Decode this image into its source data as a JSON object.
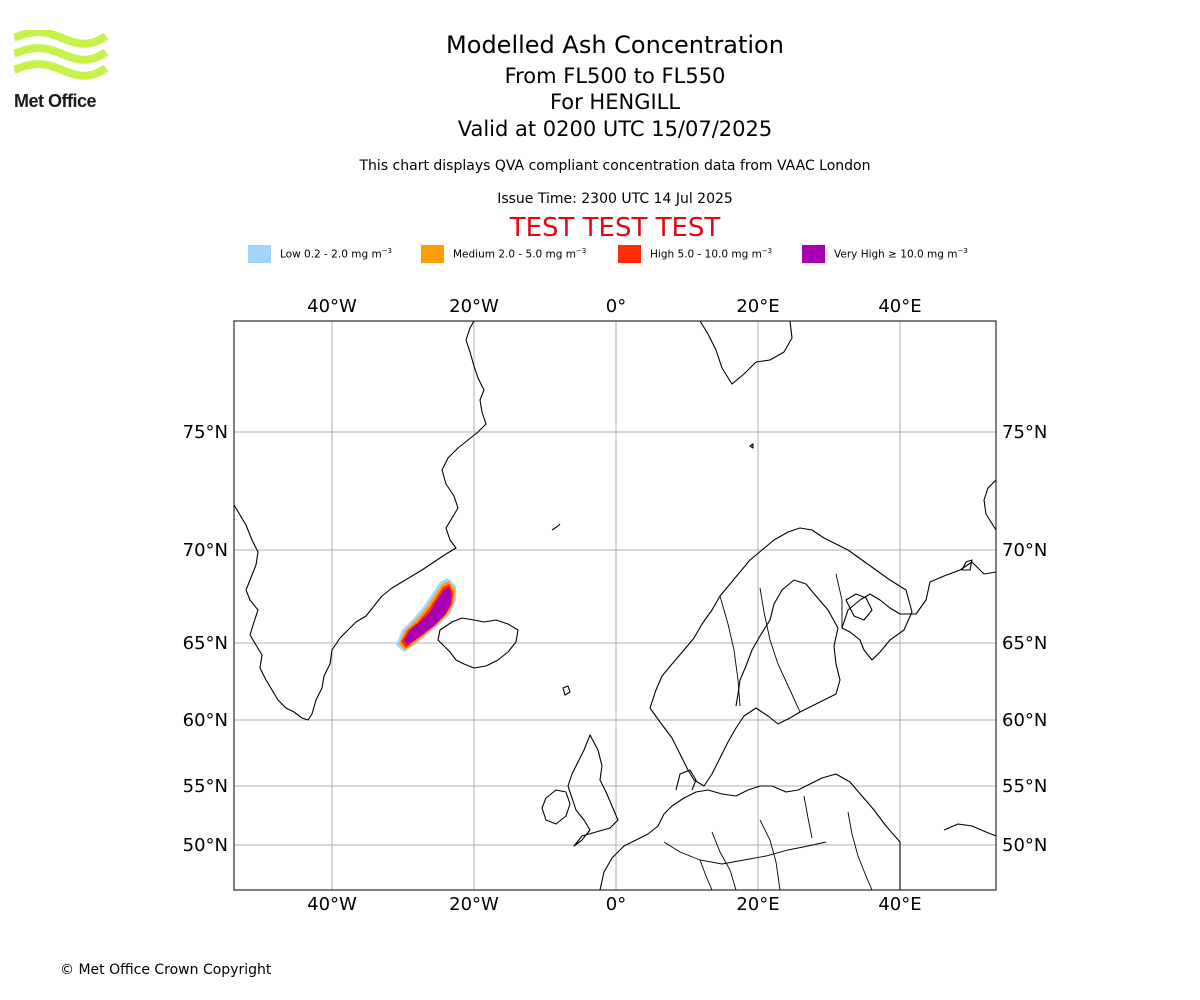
{
  "logo": {
    "text": "Met Office",
    "color": "#c8f24a"
  },
  "title": "Modelled Ash Concentration",
  "flight_levels": "From FL500 to FL550",
  "location": "For HENGILL",
  "valid_time": "Valid at 0200 UTC 15/07/2025",
  "description": "This chart displays QVA compliant concentration data from VAAC London",
  "issue_time": "Issue Time: 2300 UTC 14 Jul 2025",
  "test_banner": {
    "text": "TEST TEST TEST",
    "color": "#e30613"
  },
  "legend": [
    {
      "label": "Low 0.2 - 2.0 mg m",
      "unit_exp": "−3",
      "color": "#a3d4fc"
    },
    {
      "label": "Medium 2.0 - 5.0 mg m",
      "unit_exp": "−3",
      "color": "#ff9b07"
    },
    {
      "label": "High 5.0 - 10.0 mg m",
      "unit_exp": "−3",
      "color": "#ff2d05"
    },
    {
      "label": "Very High ≥ 10.0 mg m",
      "unit_exp": "−3",
      "color": "#a800b0"
    }
  ],
  "map": {
    "lon_labels": [
      "40°W",
      "20°W",
      "0°",
      "20°E",
      "40°E"
    ],
    "lat_labels": [
      "75°N",
      "70°N",
      "65°N",
      "60°N",
      "55°N",
      "50°N"
    ],
    "plume_center": {
      "lon": -26.5,
      "lat": 66.5
    }
  },
  "copyright": "© Met Office Crown Copyright"
}
